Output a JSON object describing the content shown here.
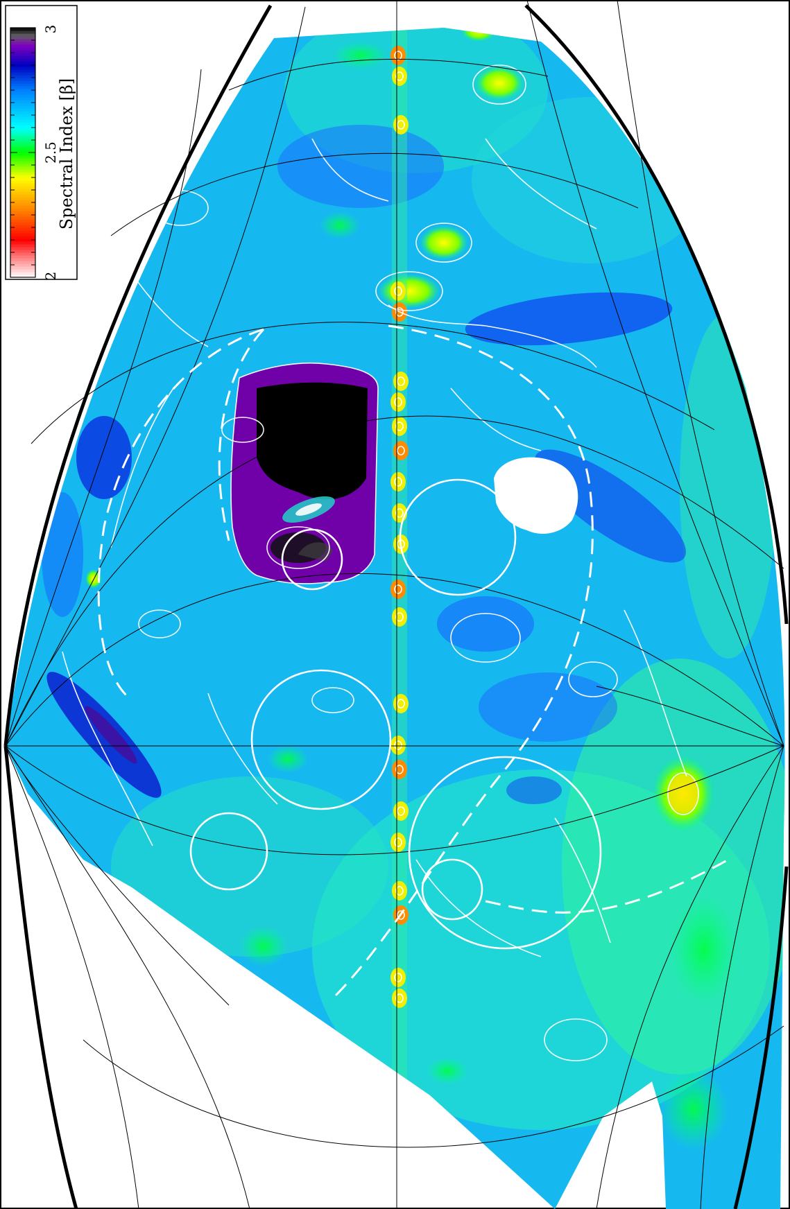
{
  "colorbar": {
    "title": "Spectral Index [β]",
    "min_label": "2",
    "mid_label": "2.5",
    "max_label": "3",
    "range": [
      2,
      3
    ],
    "stops": [
      {
        "value": 2.0,
        "color": "#ffffff"
      },
      {
        "value": 2.08,
        "color": "#ff8080"
      },
      {
        "value": 2.15,
        "color": "#ff0000"
      },
      {
        "value": 2.28,
        "color": "#ff8c00"
      },
      {
        "value": 2.4,
        "color": "#ffff00"
      },
      {
        "value": 2.5,
        "color": "#00ff00"
      },
      {
        "value": 2.6,
        "color": "#00ffff"
      },
      {
        "value": 2.75,
        "color": "#0080ff"
      },
      {
        "value": 2.85,
        "color": "#0000c0"
      },
      {
        "value": 2.93,
        "color": "#8000c0"
      },
      {
        "value": 2.97,
        "color": "#606060"
      },
      {
        "value": 3.0,
        "color": "#000000"
      }
    ]
  },
  "map": {
    "projection": "Mollweide (rotated, portion shown)",
    "background_color": "#ffffff",
    "graticule_color": "#000000",
    "contour_color": "#ffffff",
    "masked_region_color": "#ffffff"
  }
}
